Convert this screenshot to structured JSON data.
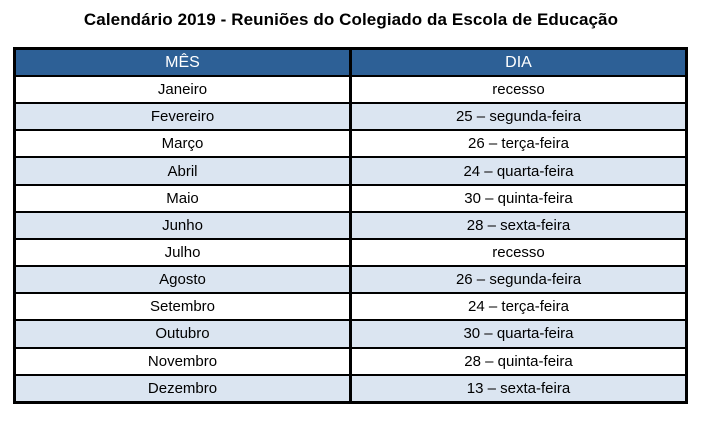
{
  "title": "Calendário 2019 - Reuniões do Colegiado da Escola de Educação",
  "table": {
    "columns": [
      "MÊS",
      "DIA"
    ],
    "rows": [
      [
        "Janeiro",
        "recesso"
      ],
      [
        "Fevereiro",
        "25 – segunda-feira"
      ],
      [
        "Março",
        "26 – terça-feira"
      ],
      [
        "Abril",
        "24 – quarta-feira"
      ],
      [
        "Maio",
        "30 – quinta-feira"
      ],
      [
        "Junho",
        "28 – sexta-feira"
      ],
      [
        "Julho",
        "recesso"
      ],
      [
        "Agosto",
        "26 – segunda-feira"
      ],
      [
        "Setembro",
        "24 – terça-feira"
      ],
      [
        "Outubro",
        "30 – quarta-feira"
      ],
      [
        "Novembro",
        "28 – quinta-feira"
      ],
      [
        "Dezembro",
        "13 – sexta-feira"
      ]
    ]
  },
  "colors": {
    "header_bg": "#2D6096",
    "header_text": "#FFFFFF",
    "row_alt_bg": "#DBE5F1",
    "row_bg": "#FFFFFF",
    "border": "#000000",
    "title_text": "#000000"
  }
}
